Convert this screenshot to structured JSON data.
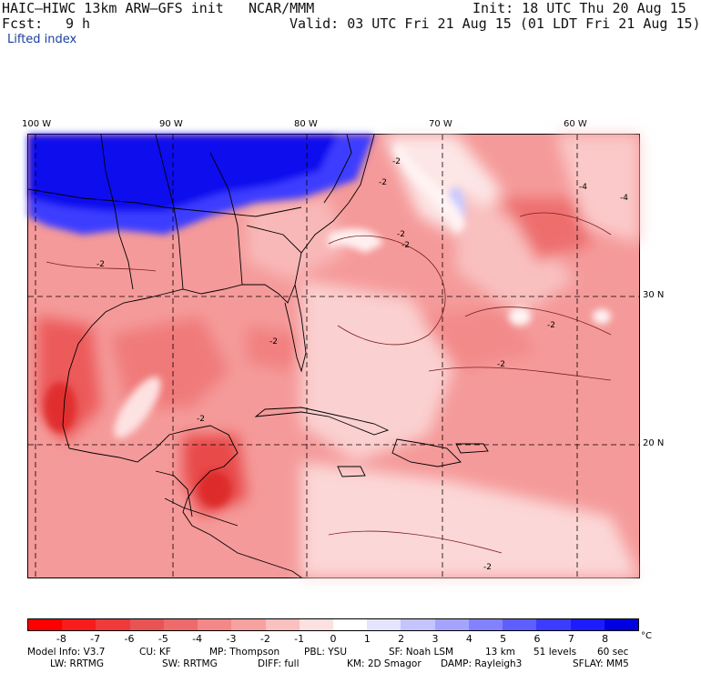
{
  "header": {
    "model": "HAIC–HIWC 13km ARW–GFS init",
    "org": "NCAR/MMM",
    "init": "Init: 18 UTC Thu 20 Aug 15",
    "fcst_label": "Fcst:",
    "fcst_value": "9 h",
    "valid": "Valid: 03 UTC Fri 21 Aug 15 (01 LDT Fri 21 Aug 15)",
    "field": "Lifted index"
  },
  "map": {
    "lon_labels": [
      "100 W",
      "90 W",
      "80 W",
      "70 W",
      "60 W"
    ],
    "lat_labels": [
      "30 N",
      "20 N"
    ],
    "contour_labels": [
      "-2",
      "-2",
      "-2",
      "-2",
      "-4",
      "-4",
      "-2",
      "-2",
      "-2",
      "-2",
      "-2",
      "-2"
    ]
  },
  "colorbar": {
    "ticks": [
      "-8",
      "-7",
      "-6",
      "-5",
      "-4",
      "-3",
      "-2",
      "-1",
      "0",
      "1",
      "2",
      "3",
      "4",
      "5",
      "6",
      "7",
      "8"
    ],
    "unit": "°C",
    "colors": [
      "#ff0000",
      "#f81c1c",
      "#f03a3a",
      "#e85454",
      "#ee6b6b",
      "#f48787",
      "#f7a1a1",
      "#fbc0c0",
      "#fde0e0",
      "#ffffff",
      "#e4e4ff",
      "#c4c4ff",
      "#a4a4ff",
      "#8282ff",
      "#5e5eff",
      "#3c3cff",
      "#1c1cff",
      "#0000e0"
    ]
  },
  "model_info": {
    "line1": [
      "Model Info: V3.7",
      "CU: KF",
      "MP: Thompson",
      "PBL: YSU",
      "SF: Noah LSM",
      "13 km",
      "51 levels",
      "60 sec"
    ],
    "line2": [
      "LW: RRTMG",
      "SW: RRTMG",
      "DIFF: full",
      "KM: 2D Smagor",
      "DAMP: Rayleigh3",
      "SFLAY: MM5"
    ]
  }
}
